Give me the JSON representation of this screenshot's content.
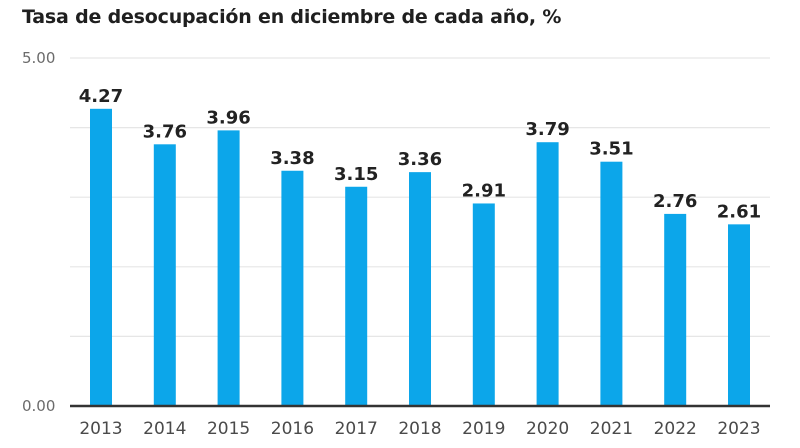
{
  "chart_data": {
    "type": "bar",
    "title": "Tasa de desocupación en diciembre de cada año, %",
    "xlabel": "",
    "ylabel": "",
    "categories": [
      "2013",
      "2014",
      "2015",
      "2016",
      "2017",
      "2018",
      "2019",
      "2020",
      "2021",
      "2022",
      "2023"
    ],
    "values": [
      4.27,
      3.76,
      3.96,
      3.38,
      3.15,
      3.36,
      2.91,
      3.79,
      3.51,
      2.76,
      2.61
    ],
    "data_labels": [
      "4.27",
      "3.76",
      "3.96",
      "3.38",
      "3.15",
      "3.36",
      "2.91",
      "3.79",
      "3.51",
      "2.76",
      "2.61"
    ],
    "ylim": [
      0,
      5
    ],
    "ytick_labels": [
      {
        "value": 0,
        "label": "0.00"
      },
      {
        "value": 5,
        "label": "5.00"
      }
    ],
    "gridlines": [
      1,
      2,
      3,
      4,
      5
    ],
    "grid": true,
    "legend": "none",
    "bar_color": "#0ca6ea",
    "axis_color": "#333333",
    "grid_color": "#e6e6e6"
  }
}
